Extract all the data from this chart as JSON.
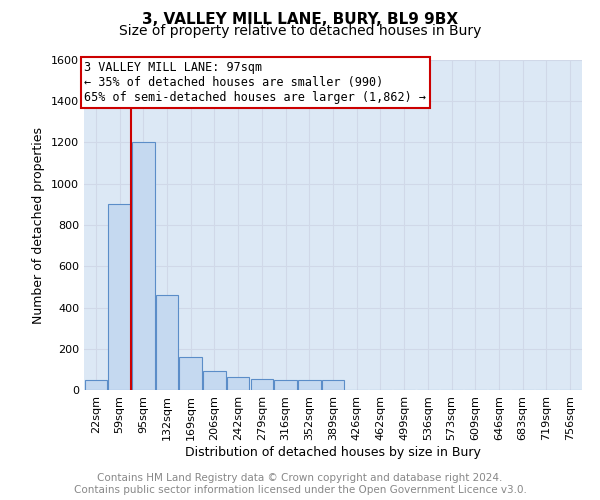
{
  "title1": "3, VALLEY MILL LANE, BURY, BL9 9BX",
  "title2": "Size of property relative to detached houses in Bury",
  "xlabel": "Distribution of detached houses by size in Bury",
  "ylabel": "Number of detached properties",
  "footer1": "Contains HM Land Registry data © Crown copyright and database right 2024.",
  "footer2": "Contains public sector information licensed under the Open Government Licence v3.0.",
  "bins": [
    "22sqm",
    "59sqm",
    "95sqm",
    "132sqm",
    "169sqm",
    "206sqm",
    "242sqm",
    "279sqm",
    "316sqm",
    "352sqm",
    "389sqm",
    "426sqm",
    "462sqm",
    "499sqm",
    "536sqm",
    "573sqm",
    "609sqm",
    "646sqm",
    "683sqm",
    "719sqm",
    "756sqm"
  ],
  "values": [
    50,
    900,
    1200,
    460,
    160,
    90,
    65,
    55,
    50,
    50,
    50,
    0,
    0,
    0,
    0,
    0,
    0,
    0,
    0,
    0,
    0
  ],
  "bar_color": "#c5d9f0",
  "bar_edge_color": "#5b8dc8",
  "annotation_text1": "3 VALLEY MILL LANE: 97sqm",
  "annotation_text2": "← 35% of detached houses are smaller (990)",
  "annotation_text3": "65% of semi-detached houses are larger (1,862) →",
  "annotation_box_color": "#ffffff",
  "annotation_box_edge": "#cc0000",
  "vline_color": "#cc0000",
  "vline_x_bin": 1.5,
  "ylim": [
    0,
    1600
  ],
  "yticks": [
    0,
    200,
    400,
    600,
    800,
    1000,
    1200,
    1400,
    1600
  ],
  "grid_color": "#d0d8e8",
  "background_color": "#dce8f5",
  "title1_fontsize": 11,
  "title2_fontsize": 10,
  "xlabel_fontsize": 9,
  "ylabel_fontsize": 9,
  "tick_fontsize": 8,
  "footer_fontsize": 7.5,
  "footer_color": "#888888"
}
